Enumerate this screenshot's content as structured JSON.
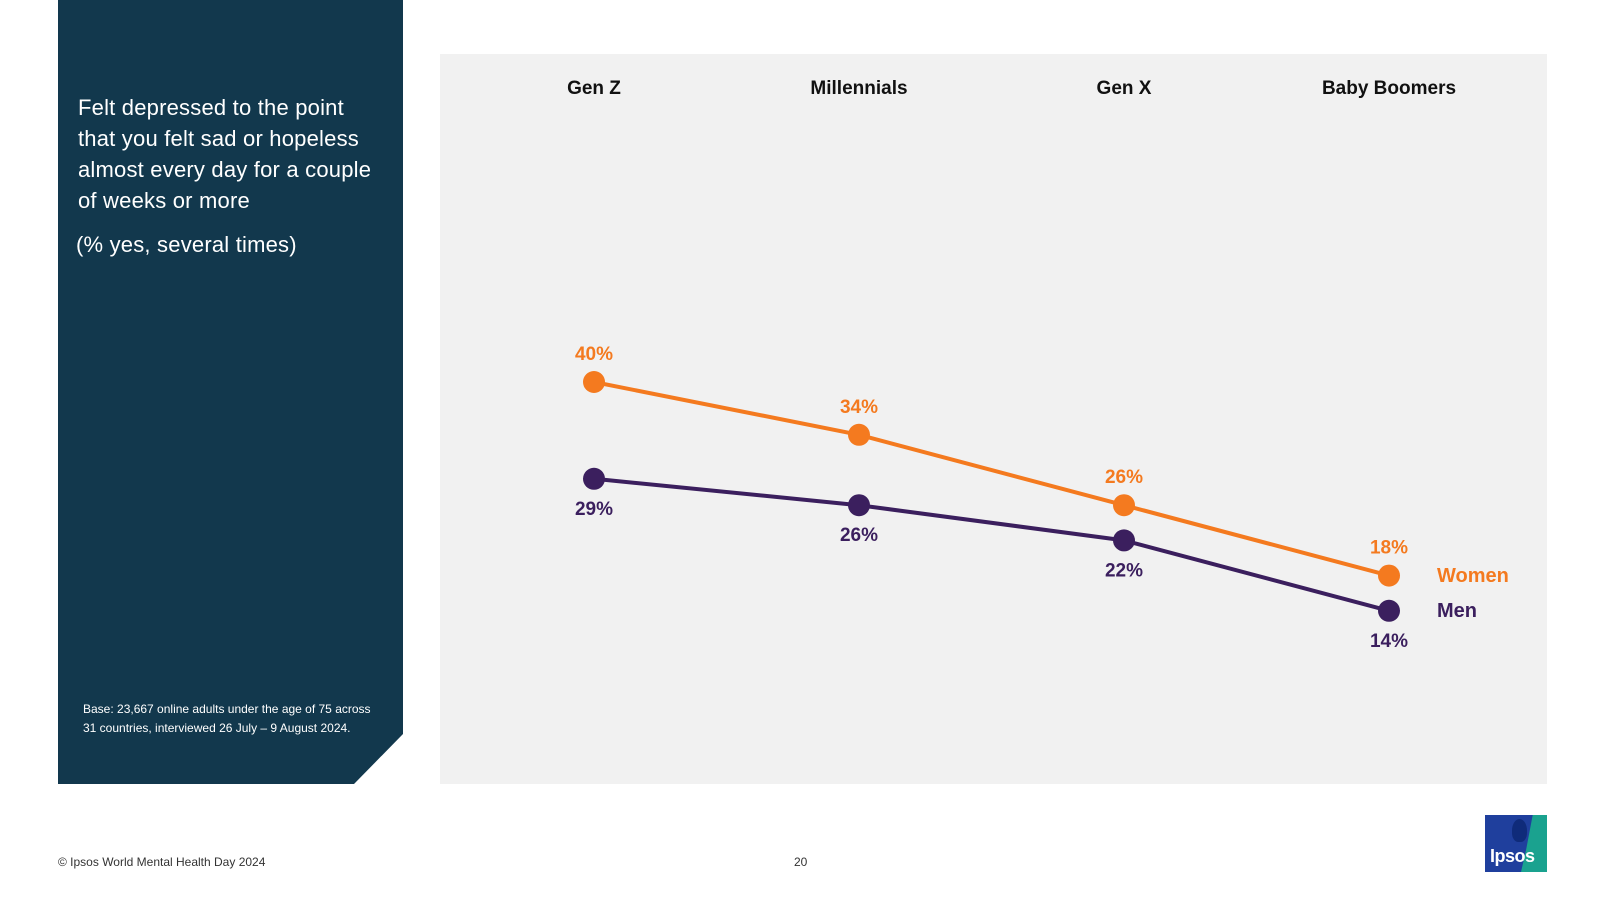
{
  "panel": {
    "title": "Felt depressed to the point that you felt sad or hopeless almost every day for a couple of weeks or more",
    "subtitle": "(% yes, several times)",
    "base_note": "Base: 23,667 online adults under the age of 75 across 31 countries, interviewed 26 July – 9 August 2024."
  },
  "chart_data": {
    "type": "line",
    "categories": [
      "Gen Z",
      "Millennials",
      "Gen X",
      "Baby Boomers"
    ],
    "series": [
      {
        "name": "Women",
        "values": [
          40,
          34,
          26,
          18
        ],
        "labels": [
          "40%",
          "34%",
          "26%",
          "18%"
        ],
        "color": "#f47a1f",
        "label_position": "above"
      },
      {
        "name": "Men",
        "values": [
          29,
          26,
          22,
          14
        ],
        "labels": [
          "29%",
          "26%",
          "22%",
          "14%"
        ],
        "color": "#3b1f5e",
        "label_position": "below"
      }
    ],
    "unit": "%",
    "grid": false,
    "legend": "inline at line ends"
  },
  "footer": {
    "copyright": "© Ipsos World Mental Health Day 2024",
    "page_number": "20"
  },
  "logo": {
    "text": "Ipsos"
  },
  "colors": {
    "panel": "#12384d",
    "chart_background": "#f1f1f1",
    "women": "#f47a1f",
    "men": "#3b1f5e"
  }
}
